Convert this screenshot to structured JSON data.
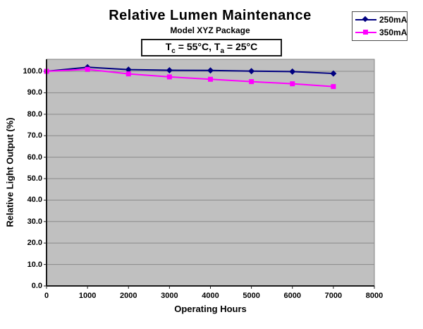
{
  "page": {
    "background": "#ffffff"
  },
  "header": {
    "title": "Relative Lumen Maintenance",
    "subtitle": "Model XYZ Package"
  },
  "annotation": {
    "t1": "T",
    "t1_sub": "c",
    "seg1": " = 55°C, ",
    "t2": "T",
    "t2_sub": "a",
    "seg2": " = 25°C"
  },
  "legend": {
    "items": [
      {
        "label": "250mA",
        "color": "#000080",
        "marker": "diamond"
      },
      {
        "label": "350mA",
        "color": "#FF00FF",
        "marker": "square"
      }
    ]
  },
  "chart_data": {
    "type": "line",
    "title": "Relative Lumen Maintenance",
    "subtitle": "Model XYZ Package",
    "annotation": "Tc = 55°C, Ta = 25°C",
    "xlabel": "Operating Hours",
    "ylabel": "Relative Light Output (%)",
    "x": [
      0,
      1000,
      2000,
      3000,
      4000,
      5000,
      6000,
      7000
    ],
    "series": [
      {
        "name": "250mA",
        "color": "#000080",
        "marker": "diamond",
        "values": [
          100.0,
          101.9,
          100.8,
          100.5,
          100.4,
          100.1,
          99.9,
          99.0
        ]
      },
      {
        "name": "350mA",
        "color": "#FF00FF",
        "marker": "square",
        "values": [
          100.0,
          100.9,
          98.8,
          97.4,
          96.3,
          95.2,
          94.2,
          92.9
        ]
      }
    ],
    "xlim": [
      0,
      8000
    ],
    "ylim": [
      0,
      105.6
    ],
    "x_ticks": [
      0,
      1000,
      2000,
      3000,
      4000,
      5000,
      6000,
      7000,
      8000
    ],
    "y_ticks": [
      0,
      10,
      20,
      30,
      40,
      50,
      60,
      70,
      80,
      90,
      100
    ],
    "y_tick_labels": [
      "0.0",
      "10.0",
      "20.0",
      "30.0",
      "40.0",
      "50.0",
      "60.0",
      "70.0",
      "80.0",
      "90.0",
      "100.0"
    ],
    "x_tick_labels": [
      "0",
      "1000",
      "2000",
      "3000",
      "4000",
      "5000",
      "6000",
      "7000",
      "8000"
    ],
    "grid": "horizontal",
    "legend_position": "top-right",
    "colors": {
      "plot_background": "#C0C0C0",
      "gridline": "#8a8a8a",
      "plot_border": "#808080",
      "axis": "#1a1a1a"
    }
  }
}
